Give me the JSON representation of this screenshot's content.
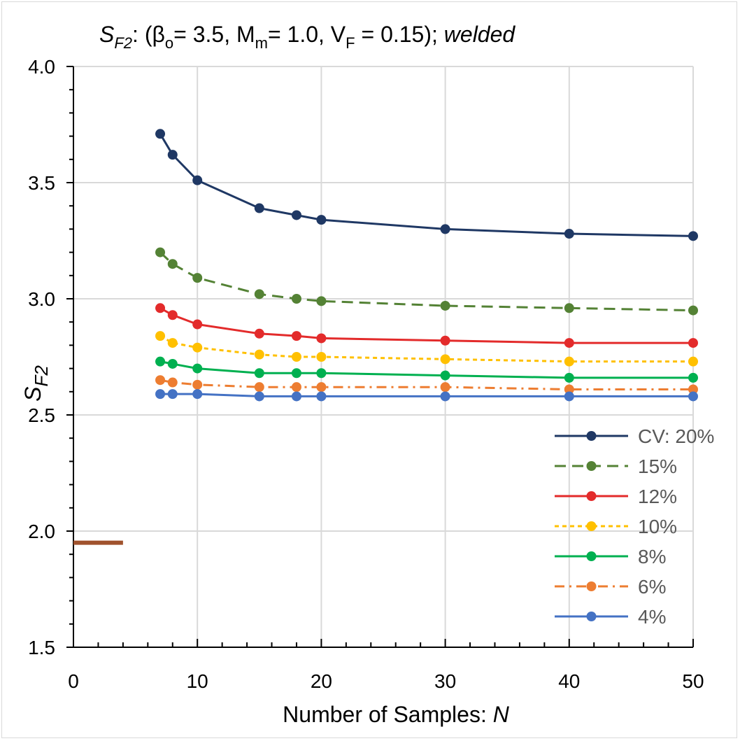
{
  "chart_data": {
    "type": "line",
    "title": {
      "s_main": "S",
      "s_sub": "F2",
      "part1": ": (β",
      "beta_sub": "o",
      "part2": "= 3.5, M",
      "m_sub": "m",
      "part3": "= 1.0, V",
      "v_sub": "F",
      "part4": " = 0.15); ",
      "italic_tail": "welded"
    },
    "xlabel": {
      "text": "Number of Samples: ",
      "italic": "N"
    },
    "ylabel": {
      "main": "S",
      "sub": "F2"
    },
    "xlim": [
      0,
      50
    ],
    "ylim": [
      1.5,
      4.0
    ],
    "xticks": [
      "0",
      "10",
      "20",
      "30",
      "40",
      "50"
    ],
    "yticks": [
      "1.5",
      "2.0",
      "2.5",
      "3.0",
      "3.5",
      "4.0"
    ],
    "x": [
      7,
      8,
      10,
      15,
      18,
      20,
      30,
      40,
      50
    ],
    "grid": true,
    "legend_position": "bottom-right",
    "series": [
      {
        "name": "CV: 20%",
        "color": "#1f3864",
        "dash": "solid",
        "values": [
          3.71,
          3.62,
          3.51,
          3.39,
          3.36,
          3.34,
          3.3,
          3.28,
          3.27
        ]
      },
      {
        "name": "15%",
        "color": "#548235",
        "dash": "dashed",
        "values": [
          3.2,
          3.15,
          3.09,
          3.02,
          3.0,
          2.99,
          2.97,
          2.96,
          2.95
        ]
      },
      {
        "name": "12%",
        "color": "#e32b2b",
        "dash": "solid",
        "values": [
          2.96,
          2.93,
          2.89,
          2.85,
          2.84,
          2.83,
          2.82,
          2.81,
          2.81
        ]
      },
      {
        "name": "10%",
        "color": "#ffc000",
        "dash": "dotted",
        "values": [
          2.84,
          2.81,
          2.79,
          2.76,
          2.75,
          2.75,
          2.74,
          2.73,
          2.73
        ]
      },
      {
        "name": "8%",
        "color": "#00b050",
        "dash": "solid",
        "values": [
          2.73,
          2.72,
          2.7,
          2.68,
          2.68,
          2.68,
          2.67,
          2.66,
          2.66
        ]
      },
      {
        "name": "6%",
        "color": "#ed7d31",
        "dash": "dashdot",
        "values": [
          2.65,
          2.64,
          2.63,
          2.62,
          2.62,
          2.62,
          2.62,
          2.61,
          2.61
        ]
      },
      {
        "name": "4%",
        "color": "#4472c4",
        "dash": "solid",
        "values": [
          2.59,
          2.59,
          2.59,
          2.58,
          2.58,
          2.58,
          2.58,
          2.58,
          2.58
        ]
      }
    ],
    "reference_line": {
      "color": "#a0522d",
      "y": 1.95,
      "x": [
        0,
        4
      ]
    }
  }
}
